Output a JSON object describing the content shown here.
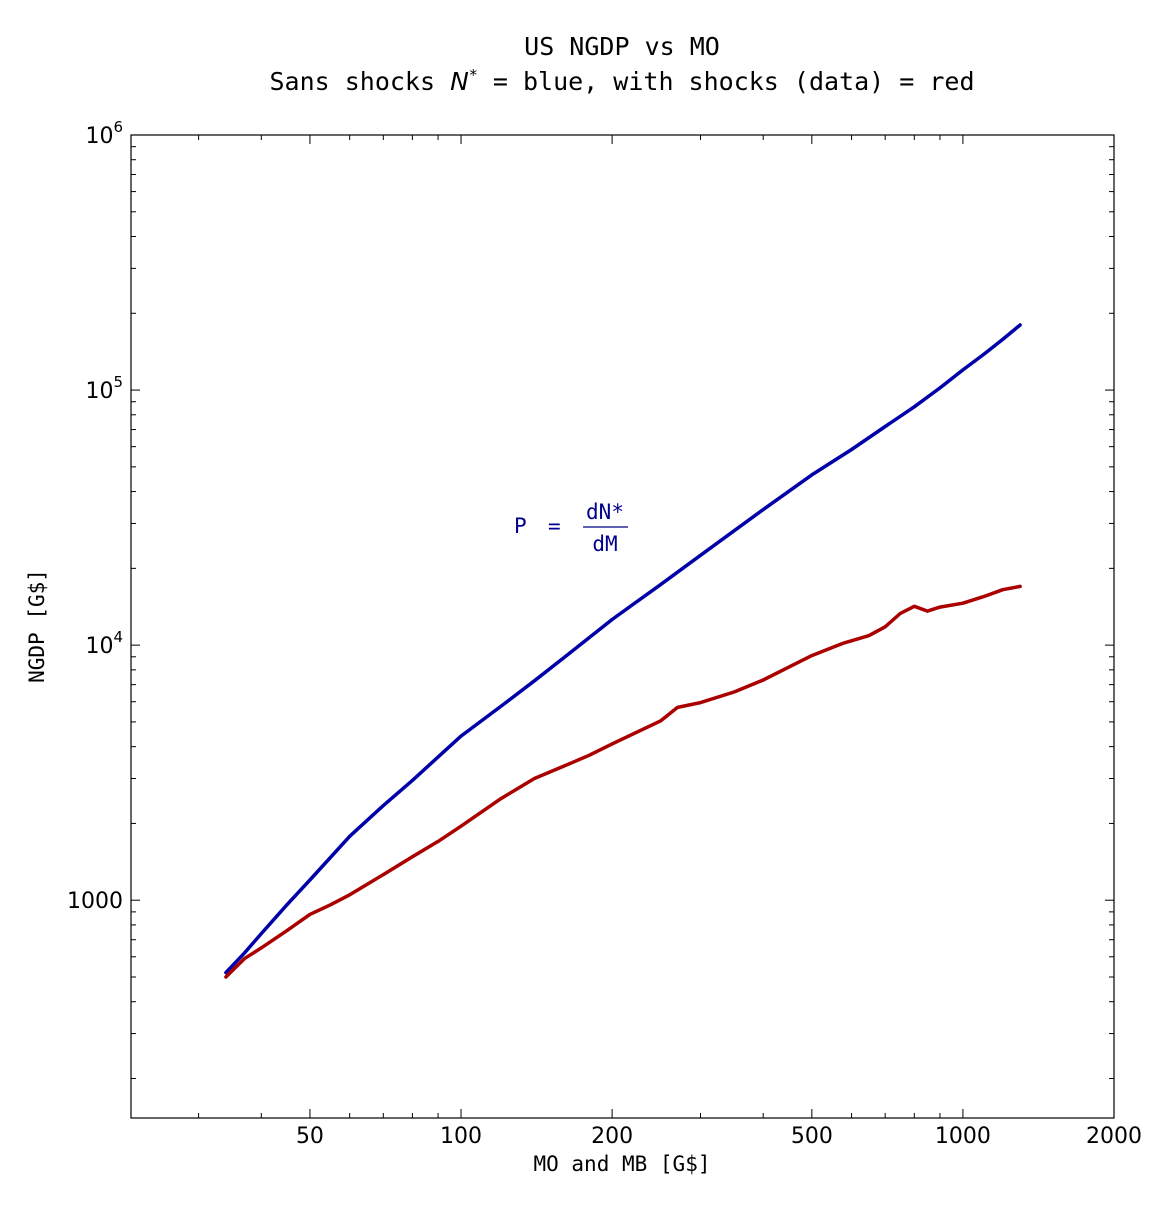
{
  "chart_data": {
    "type": "line",
    "title": "US NGDP vs MO",
    "subtitle": "Sans shocks (N*) = blue, with shocks (data) = red",
    "subtitle_parts": {
      "prefix": "Sans shocks ",
      "symbol": "N",
      "superscript": "*",
      "suffix": " = blue, with shocks (data) = red"
    },
    "xlabel": "MO and MB [G$]",
    "ylabel": "NGDP [G$]",
    "x_scale": "log",
    "y_scale": "log",
    "xlim": [
      22,
      2000
    ],
    "ylim": [
      140,
      1000000
    ],
    "x_tick_labels": [
      {
        "value": 50,
        "label": "50"
      },
      {
        "value": 100,
        "label": "100"
      },
      {
        "value": 200,
        "label": "200"
      },
      {
        "value": 500,
        "label": "500"
      },
      {
        "value": 1000,
        "label": "1000"
      },
      {
        "value": 2000,
        "label": "2000"
      }
    ],
    "y_tick_labels": [
      {
        "value": 1000,
        "base": "1000",
        "exp": ""
      },
      {
        "value": 10000,
        "base": "10",
        "exp": "4"
      },
      {
        "value": 100000,
        "base": "10",
        "exp": "5"
      },
      {
        "value": 1000000,
        "base": "10",
        "exp": "6"
      }
    ],
    "grid": false,
    "annotation": {
      "lhs": "P",
      "eq": "=",
      "numerator": "dN*",
      "denominator": "dM",
      "color": "#00008b"
    },
    "series": [
      {
        "color": "#0000a8",
        "x": [
          34,
          37,
          40,
          45,
          50,
          60,
          70,
          80,
          100,
          120,
          140,
          160,
          200,
          250,
          300,
          400,
          500,
          600,
          700,
          800,
          900,
          1000,
          1100,
          1200,
          1300
        ],
        "y": [
          520,
          620,
          740,
          960,
          1200,
          1780,
          2350,
          2950,
          4400,
          5750,
          7250,
          8900,
          12600,
          17300,
          22500,
          34000,
          46500,
          58500,
          72000,
          86000,
          102000,
          120000,
          138000,
          158000,
          180000
        ]
      },
      {
        "color": "#aa0000",
        "x": [
          34,
          37,
          40,
          45,
          50,
          55,
          60,
          70,
          80,
          90,
          100,
          120,
          140,
          160,
          180,
          200,
          250,
          270,
          300,
          350,
          400,
          450,
          500,
          550,
          580,
          650,
          700,
          750,
          800,
          850,
          900,
          1000,
          1100,
          1200,
          1300
        ],
        "y": [
          500,
          590,
          650,
          760,
          880,
          960,
          1050,
          1260,
          1480,
          1700,
          1950,
          2500,
          3000,
          3350,
          3700,
          4100,
          5050,
          5700,
          5950,
          6550,
          7300,
          8200,
          9100,
          9800,
          10200,
          10900,
          11800,
          13300,
          14200,
          13600,
          14100,
          14600,
          15500,
          16500,
          17000
        ]
      }
    ]
  }
}
